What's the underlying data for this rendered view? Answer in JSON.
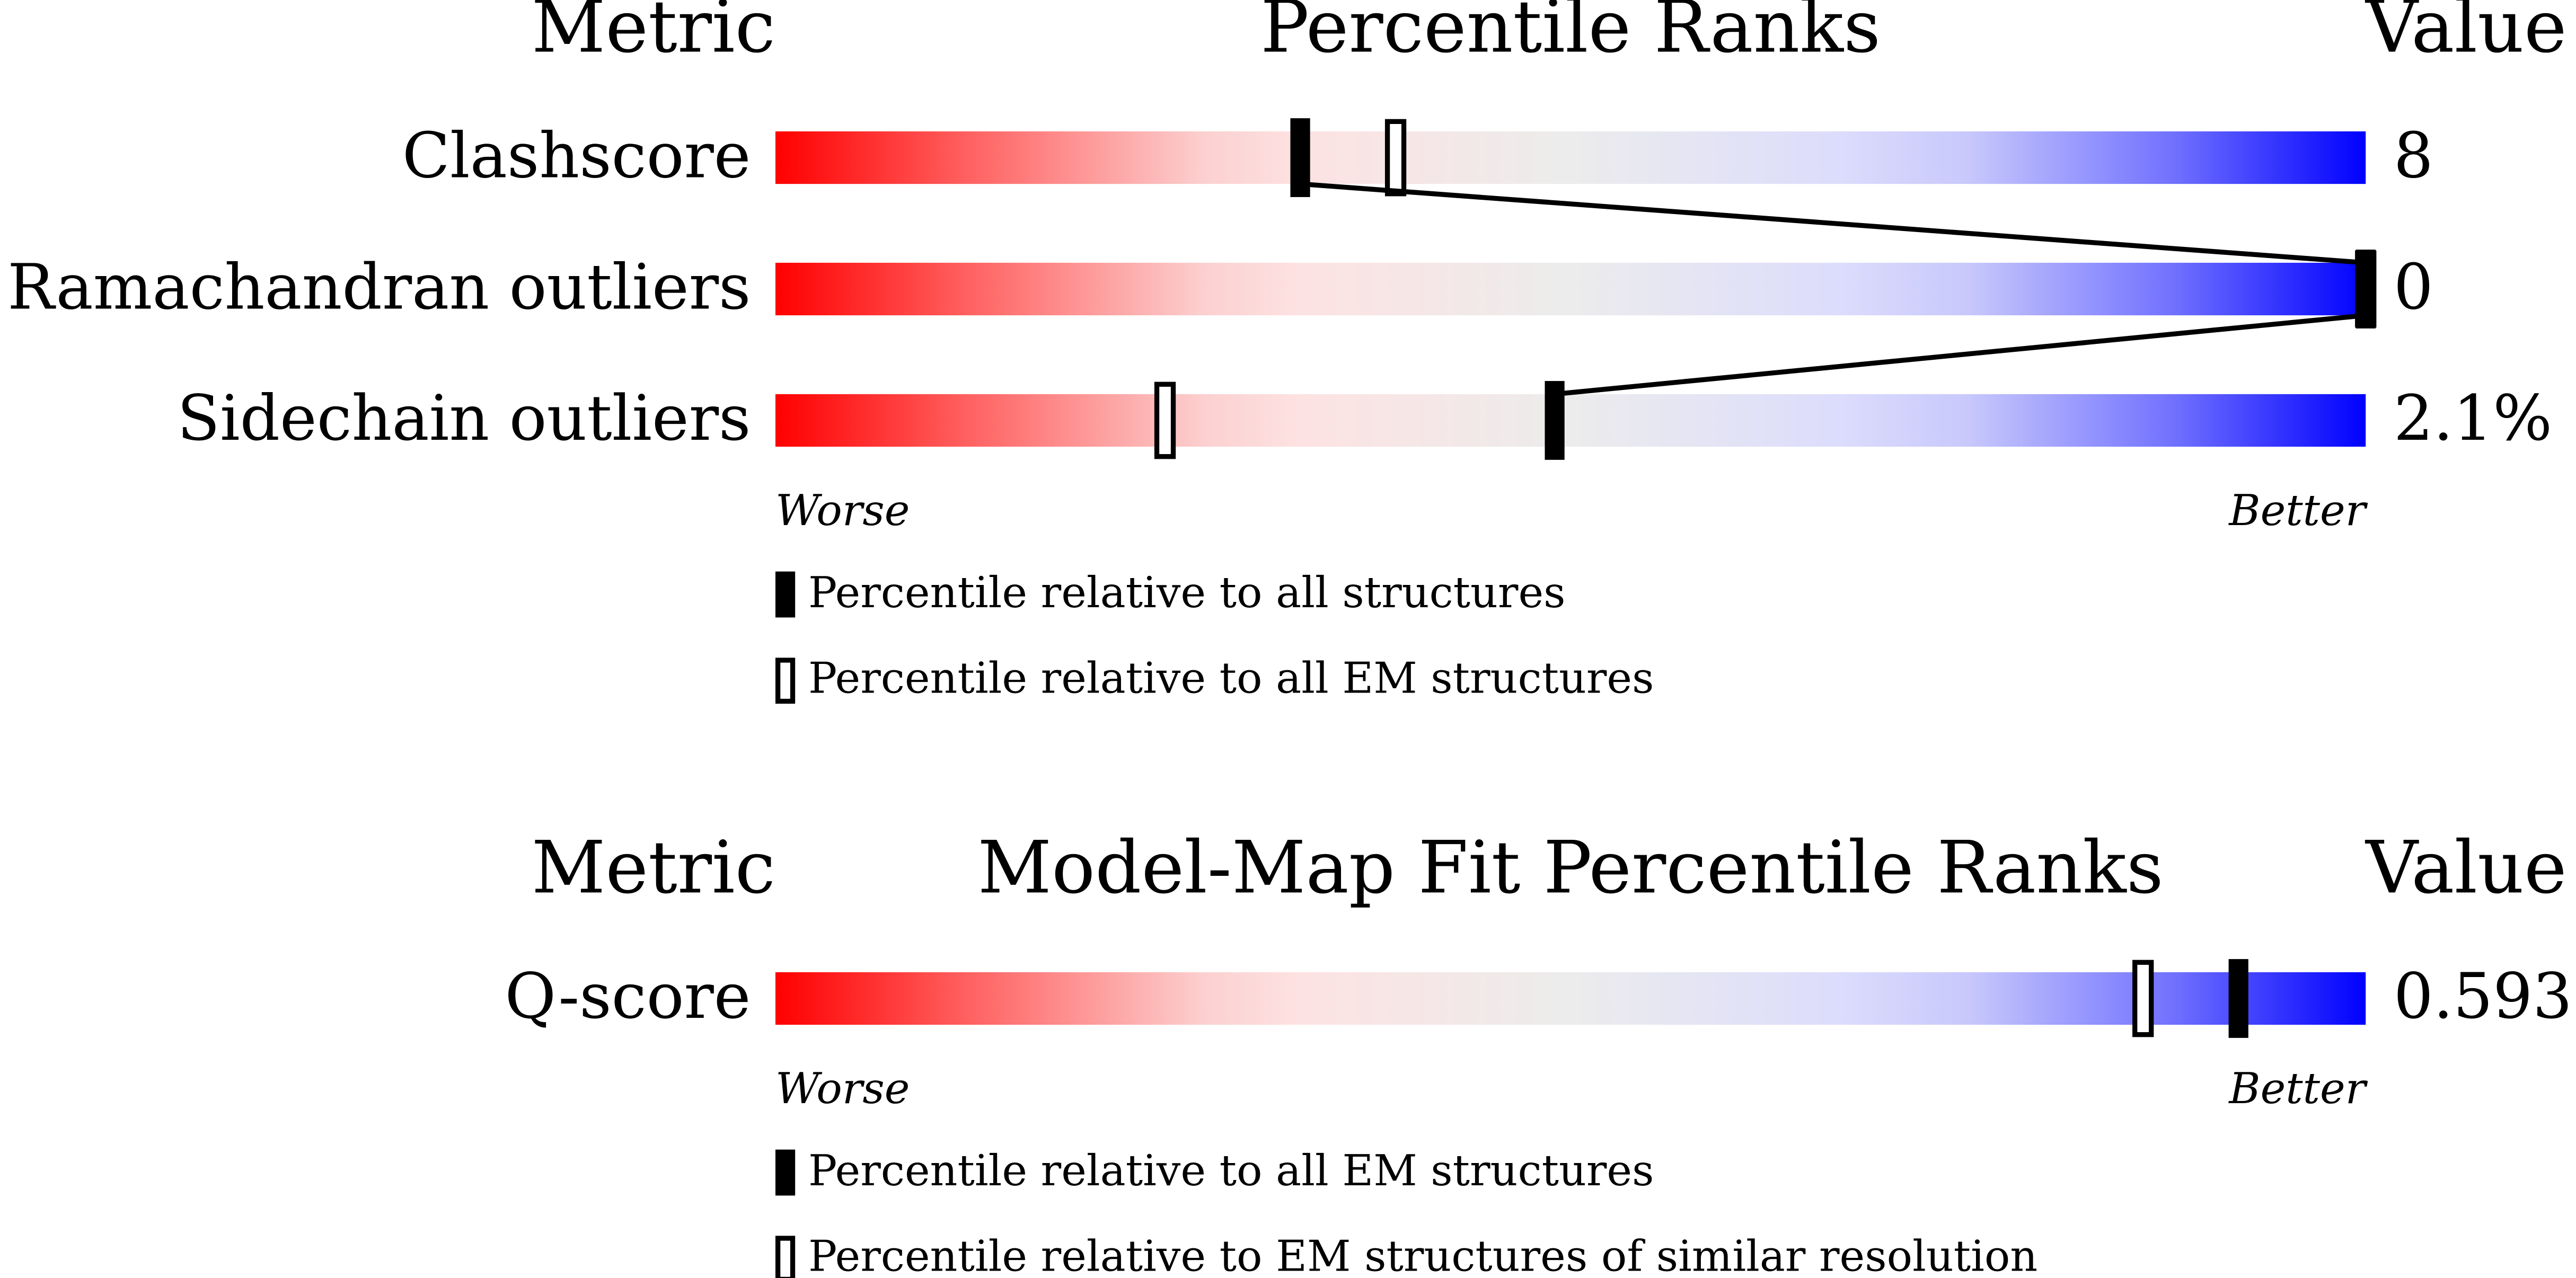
{
  "chart_data": [
    {
      "type": "slider",
      "metric_header": "Metric",
      "title": "Percentile Ranks",
      "value_header": "Value",
      "categories": [
        "Clashscore",
        "Ramachandran outliers",
        "Sidechain outliers"
      ],
      "value_labels": [
        "8",
        "0",
        "2.1%"
      ],
      "xlim": [
        0,
        100
      ],
      "worse_label": "Worse",
      "better_label": "Better",
      "series": [
        {
          "name": "Percentile relative to all structures",
          "style": "filled",
          "color": "#000000",
          "values": [
            33,
            100,
            49
          ]
        },
        {
          "name": "Percentile relative to all EM structures",
          "style": "open",
          "color": "#000000",
          "values": [
            39,
            100,
            24.5
          ]
        }
      ]
    },
    {
      "type": "slider",
      "metric_header": "Metric",
      "title": "Model-Map Fit Percentile Ranks",
      "value_header": "Value",
      "categories": [
        "Q-score"
      ],
      "value_labels": [
        "0.593"
      ],
      "xlim": [
        0,
        100
      ],
      "worse_label": "Worse",
      "better_label": "Better",
      "series": [
        {
          "name": "Percentile relative to all EM structures",
          "style": "filled",
          "color": "#000000",
          "values": [
            92
          ]
        },
        {
          "name": "Percentile relative to EM structures of similar resolution",
          "style": "open",
          "color": "#000000",
          "values": [
            86
          ]
        }
      ]
    }
  ]
}
